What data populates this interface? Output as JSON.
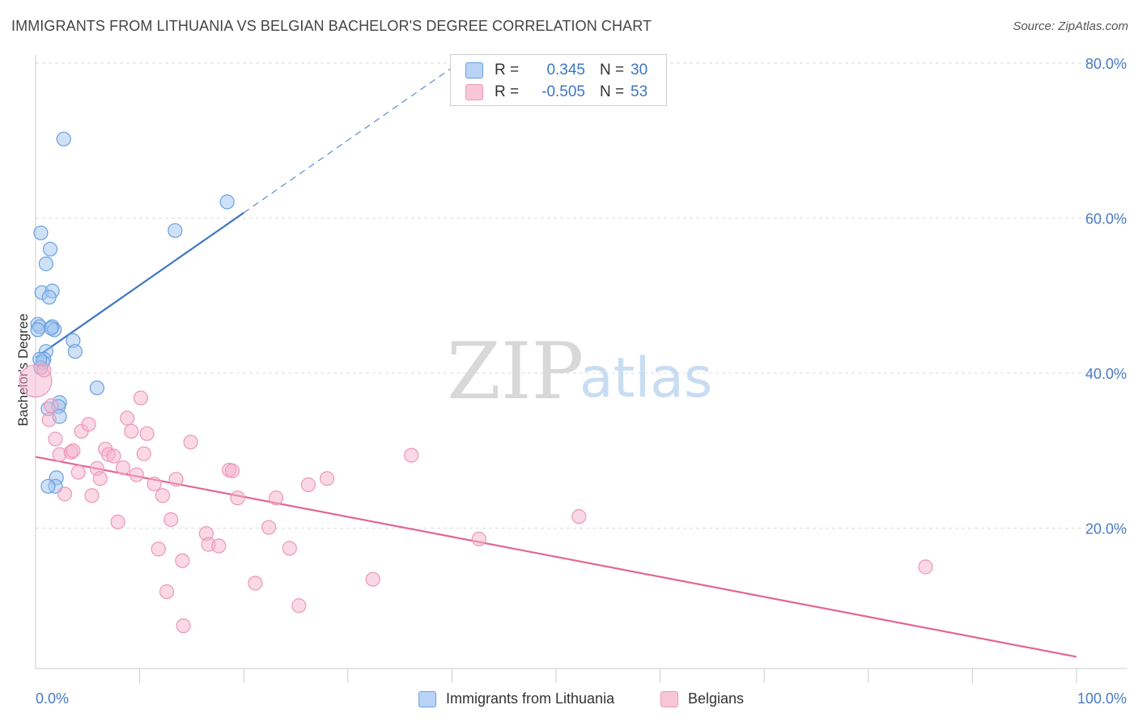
{
  "title": "IMMIGRANTS FROM LITHUANIA VS BELGIAN BACHELOR'S DEGREE CORRELATION CHART",
  "source": "Source: ZipAtlas.com",
  "watermark": {
    "zip": "ZIP",
    "atlas": "atlas"
  },
  "legend": {
    "r_label": "R =",
    "n_label": "N =",
    "rows": [
      {
        "name": "Immigrants from Lithuania",
        "r": "0.345",
        "n": "30",
        "color": "#6aa0de"
      },
      {
        "name": "Belgians",
        "r": "-0.505",
        "n": "53",
        "color": "#ec97b7"
      }
    ]
  },
  "chart_data": {
    "type": "scatter",
    "xlabel": "",
    "ylabel": "Bachelor's Degree",
    "xlim": [
      0,
      100
    ],
    "ylim": [
      0,
      80
    ],
    "x_tick_labels": [
      "0.0%",
      "100.0%"
    ],
    "y_ticks": [
      20,
      40,
      60,
      80
    ],
    "y_tick_labels": [
      "20.0%",
      "40.0%",
      "60.0%",
      "80.0%"
    ],
    "series": [
      {
        "name": "Immigrants from Lithuania",
        "color": "#3d76c4",
        "points": [
          [
            2.7,
            70.2
          ],
          [
            0.5,
            58.1
          ],
          [
            1.4,
            56.0
          ],
          [
            1.0,
            54.1
          ],
          [
            0.6,
            50.4
          ],
          [
            1.6,
            50.6
          ],
          [
            1.3,
            49.8
          ],
          [
            13.4,
            58.4
          ],
          [
            18.4,
            62.1
          ],
          [
            0.2,
            46.3
          ],
          [
            0.4,
            46.0
          ],
          [
            0.2,
            45.6
          ],
          [
            1.6,
            46.0
          ],
          [
            1.8,
            45.6
          ],
          [
            1.5,
            45.8
          ],
          [
            3.6,
            44.2
          ],
          [
            3.8,
            42.8
          ],
          [
            1.0,
            42.8
          ],
          [
            0.8,
            41.8
          ],
          [
            0.7,
            41.4
          ],
          [
            0.5,
            40.7
          ],
          [
            5.9,
            38.1
          ],
          [
            2.3,
            36.2
          ],
          [
            2.2,
            35.7
          ],
          [
            1.2,
            35.4
          ],
          [
            2.3,
            34.4
          ],
          [
            2.0,
            26.5
          ],
          [
            1.9,
            25.4
          ],
          [
            1.2,
            25.4
          ],
          [
            0.4,
            41.8
          ]
        ],
        "trend": {
          "x0": 0,
          "y0": 42.0,
          "x1": 20,
          "y1": 60.7,
          "dash_to_x": 40
        }
      },
      {
        "name": "Belgians",
        "color": "#e1678f",
        "points": [
          [
            0,
            39.0
          ],
          [
            0.8,
            40.4
          ],
          [
            1.3,
            34.0
          ],
          [
            1.5,
            35.8
          ],
          [
            1.9,
            31.5
          ],
          [
            2.3,
            29.5
          ],
          [
            2.8,
            24.4
          ],
          [
            3.4,
            29.8
          ],
          [
            3.6,
            30.0
          ],
          [
            4.1,
            27.2
          ],
          [
            4.4,
            32.5
          ],
          [
            5.1,
            33.4
          ],
          [
            5.4,
            24.2
          ],
          [
            5.9,
            27.7
          ],
          [
            6.2,
            26.4
          ],
          [
            6.7,
            30.2
          ],
          [
            7.0,
            29.5
          ],
          [
            7.5,
            29.3
          ],
          [
            7.9,
            20.8
          ],
          [
            8.4,
            27.8
          ],
          [
            8.8,
            34.2
          ],
          [
            9.2,
            32.5
          ],
          [
            9.7,
            26.9
          ],
          [
            10.1,
            36.8
          ],
          [
            10.4,
            29.6
          ],
          [
            10.7,
            32.2
          ],
          [
            11.4,
            25.7
          ],
          [
            11.8,
            17.3
          ],
          [
            12.2,
            24.2
          ],
          [
            12.6,
            11.8
          ],
          [
            13.0,
            21.1
          ],
          [
            13.5,
            26.3
          ],
          [
            14.1,
            15.8
          ],
          [
            14.2,
            7.4
          ],
          [
            14.9,
            31.1
          ],
          [
            16.4,
            19.3
          ],
          [
            16.6,
            17.9
          ],
          [
            17.6,
            17.7
          ],
          [
            18.6,
            27.5
          ],
          [
            18.9,
            27.4
          ],
          [
            19.4,
            23.9
          ],
          [
            21.1,
            12.9
          ],
          [
            22.4,
            20.1
          ],
          [
            23.1,
            23.9
          ],
          [
            24.4,
            17.4
          ],
          [
            25.3,
            10.0
          ],
          [
            26.2,
            25.6
          ],
          [
            28.0,
            26.4
          ],
          [
            32.4,
            13.4
          ],
          [
            36.1,
            29.4
          ],
          [
            42.6,
            18.6
          ],
          [
            52.2,
            21.5
          ],
          [
            85.5,
            15.0
          ]
        ],
        "trend": {
          "x0": 0,
          "y0": 29.2,
          "x1": 100,
          "y1": 3.4
        }
      }
    ],
    "legend_position": "top-center",
    "grid": true
  }
}
